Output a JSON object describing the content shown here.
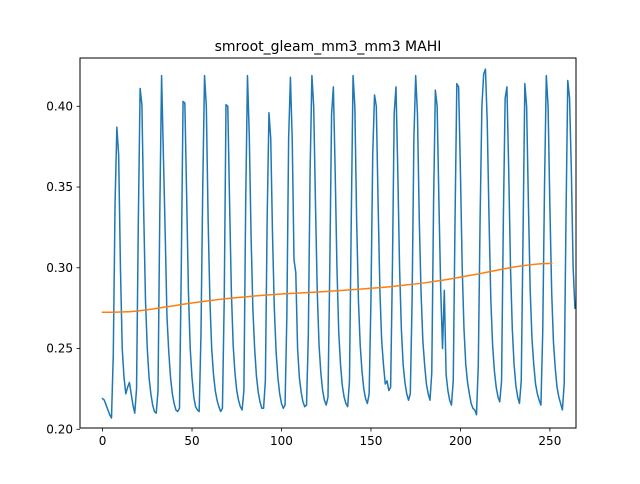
{
  "chart_data": {
    "type": "line",
    "title": "smroot_gleam_mm3_mm3 MAHI",
    "xlabel": "",
    "ylabel": "",
    "xlim": [
      -12.6,
      264.6
    ],
    "ylim": [
      0.2008,
      0.4299
    ],
    "x_ticks": [
      0,
      50,
      100,
      150,
      200,
      250
    ],
    "y_ticks": [
      0.2,
      0.25,
      0.3,
      0.35,
      0.4
    ],
    "x_tick_labels": [
      "0",
      "50",
      "100",
      "150",
      "200",
      "250"
    ],
    "y_tick_labels": [
      "0.20",
      "0.25",
      "0.30",
      "0.35",
      "0.40"
    ],
    "grid": false,
    "colors": {
      "series_0": "#1f77b4",
      "series_1": "#ff7f0e"
    },
    "series": [
      {
        "id": "series_0",
        "x_step": 1,
        "values": [
          0.219,
          0.218,
          0.215,
          0.212,
          0.209,
          0.207,
          0.246,
          0.34,
          0.387,
          0.37,
          0.3,
          0.25,
          0.232,
          0.222,
          0.226,
          0.229,
          0.222,
          0.215,
          0.21,
          0.225,
          0.329,
          0.411,
          0.401,
          0.335,
          0.28,
          0.25,
          0.232,
          0.222,
          0.215,
          0.211,
          0.21,
          0.224,
          0.334,
          0.419,
          0.37,
          0.322,
          0.27,
          0.248,
          0.232,
          0.222,
          0.216,
          0.212,
          0.211,
          0.213,
          0.3,
          0.403,
          0.402,
          0.345,
          0.285,
          0.25,
          0.232,
          0.22,
          0.214,
          0.212,
          0.211,
          0.258,
          0.35,
          0.419,
          0.4,
          0.33,
          0.28,
          0.25,
          0.234,
          0.224,
          0.218,
          0.214,
          0.211,
          0.213,
          0.28,
          0.401,
          0.4,
          0.34,
          0.285,
          0.252,
          0.235,
          0.224,
          0.218,
          0.214,
          0.212,
          0.224,
          0.34,
          0.419,
          0.382,
          0.32,
          0.275,
          0.25,
          0.233,
          0.223,
          0.217,
          0.213,
          0.213,
          0.23,
          0.33,
          0.396,
          0.38,
          0.32,
          0.275,
          0.248,
          0.232,
          0.222,
          0.216,
          0.213,
          0.215,
          0.27,
          0.38,
          0.418,
          0.38,
          0.305,
          0.297,
          0.25,
          0.232,
          0.223,
          0.217,
          0.214,
          0.215,
          0.258,
          0.36,
          0.419,
          0.4,
          0.34,
          0.285,
          0.252,
          0.235,
          0.224,
          0.218,
          0.215,
          0.22,
          0.3,
          0.395,
          0.412,
          0.36,
          0.3,
          0.26,
          0.24,
          0.227,
          0.22,
          0.216,
          0.214,
          0.23,
          0.33,
          0.419,
          0.4,
          0.33,
          0.28,
          0.252,
          0.236,
          0.225,
          0.219,
          0.216,
          0.222,
          0.28,
          0.37,
          0.407,
          0.4,
          0.34,
          0.286,
          0.255,
          0.24,
          0.228,
          0.23,
          0.224,
          0.226,
          0.3,
          0.396,
          0.412,
          0.36,
          0.3,
          0.262,
          0.24,
          0.229,
          0.222,
          0.218,
          0.222,
          0.28,
          0.38,
          0.419,
          0.395,
          0.33,
          0.285,
          0.255,
          0.24,
          0.228,
          0.222,
          0.218,
          0.235,
          0.34,
          0.41,
          0.4,
          0.34,
          0.286,
          0.25,
          0.286,
          0.234,
          0.224,
          0.218,
          0.215,
          0.23,
          0.33,
          0.414,
          0.412,
          0.36,
          0.3,
          0.262,
          0.24,
          0.229,
          0.222,
          0.216,
          0.213,
          0.212,
          0.209,
          0.24,
          0.33,
          0.4,
          0.42,
          0.423,
          0.39,
          0.33,
          0.28,
          0.252,
          0.236,
          0.226,
          0.22,
          0.217,
          0.23,
          0.33,
          0.405,
          0.412,
          0.36,
          0.3,
          0.262,
          0.24,
          0.227,
          0.22,
          0.216,
          0.23,
          0.32,
          0.414,
          0.4,
          0.34,
          0.286,
          0.256,
          0.24,
          0.228,
          0.222,
          0.218,
          0.215,
          0.26,
          0.35,
          0.419,
          0.4,
          0.338,
          0.285,
          0.254,
          0.238,
          0.226,
          0.22,
          0.216,
          0.212,
          0.228,
          0.33,
          0.416,
          0.405,
          0.36,
          0.3,
          0.275
        ]
      },
      {
        "id": "series_1",
        "x": [
          0,
          5,
          10,
          15,
          20,
          25,
          30,
          35,
          40,
          45,
          50,
          55,
          60,
          65,
          70,
          75,
          80,
          85,
          90,
          95,
          100,
          105,
          110,
          115,
          120,
          125,
          130,
          135,
          140,
          145,
          150,
          155,
          160,
          165,
          170,
          175,
          180,
          185,
          190,
          195,
          200,
          205,
          210,
          215,
          220,
          225,
          230,
          235,
          240,
          245,
          251
        ],
        "values": [
          0.2725,
          0.2725,
          0.2726,
          0.2728,
          0.2733,
          0.274,
          0.2748,
          0.2757,
          0.2765,
          0.2774,
          0.2782,
          0.279,
          0.2797,
          0.2804,
          0.281,
          0.2815,
          0.282,
          0.2825,
          0.283,
          0.2834,
          0.2838,
          0.2841,
          0.2844,
          0.2847,
          0.285,
          0.2853,
          0.2857,
          0.2861,
          0.2865,
          0.2869,
          0.2873,
          0.2877,
          0.2882,
          0.2888,
          0.2894,
          0.29,
          0.2907,
          0.2915,
          0.2923,
          0.2932,
          0.2942,
          0.2952,
          0.2962,
          0.2973,
          0.2984,
          0.2995,
          0.3005,
          0.3013,
          0.302,
          0.3025,
          0.3027
        ]
      }
    ]
  }
}
